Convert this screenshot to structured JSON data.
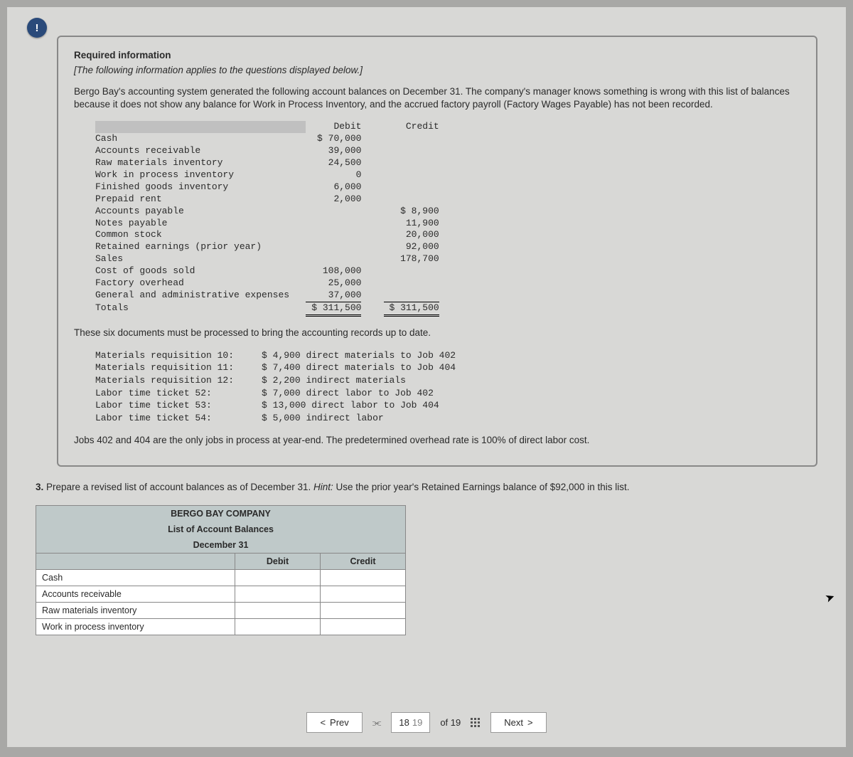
{
  "badge": "!",
  "required_info_title": "Required information",
  "italic_note": "[The following information applies to the questions displayed below.]",
  "intro_paragraph": "Bergo Bay's accounting system generated the following account balances on December 31. The company's manager knows something is wrong with this list of balances because it does not show any balance for Work in Process Inventory, and the accrued factory payroll (Factory Wages Payable) has not been recorded.",
  "trial_balance": {
    "col_debit": "Debit",
    "col_credit": "Credit",
    "rows": [
      {
        "account": "Cash",
        "debit": "$ 70,000",
        "credit": ""
      },
      {
        "account": "Accounts receivable",
        "debit": "39,000",
        "credit": ""
      },
      {
        "account": "Raw materials inventory",
        "debit": "24,500",
        "credit": ""
      },
      {
        "account": "Work in process inventory",
        "debit": "0",
        "credit": ""
      },
      {
        "account": "Finished goods inventory",
        "debit": "6,000",
        "credit": ""
      },
      {
        "account": "Prepaid rent",
        "debit": "2,000",
        "credit": ""
      },
      {
        "account": "Accounts payable",
        "debit": "",
        "credit": "$ 8,900"
      },
      {
        "account": "Notes payable",
        "debit": "",
        "credit": "11,900"
      },
      {
        "account": "Common stock",
        "debit": "",
        "credit": "20,000"
      },
      {
        "account": "Retained earnings (prior year)",
        "debit": "",
        "credit": "92,000"
      },
      {
        "account": "Sales",
        "debit": "",
        "credit": "178,700"
      },
      {
        "account": "Cost of goods sold",
        "debit": "108,000",
        "credit": ""
      },
      {
        "account": "Factory overhead",
        "debit": "25,000",
        "credit": ""
      },
      {
        "account": "General and administrative expenses",
        "debit": "37,000",
        "credit": ""
      }
    ],
    "totals_label": "Totals",
    "totals_debit": "$ 311,500",
    "totals_credit": "$ 311,500"
  },
  "docs_intro": "These six documents must be processed to bring the accounting records up to date.",
  "documents": [
    {
      "label": "Materials requisition 10:",
      "desc": "$ 4,900 direct materials to Job 402"
    },
    {
      "label": "Materials requisition 11:",
      "desc": "$ 7,400 direct materials to Job 404"
    },
    {
      "label": "Materials requisition 12:",
      "desc": "$ 2,200 indirect materials"
    },
    {
      "label": "Labor time ticket 52:",
      "desc": "$ 7,000 direct labor to Job 402"
    },
    {
      "label": "Labor time ticket 53:",
      "desc": "$ 13,000 direct labor to Job 404"
    },
    {
      "label": "Labor time ticket 54:",
      "desc": "$ 5,000 indirect labor"
    }
  ],
  "docs_outro": "Jobs 402 and 404 are the only jobs in process at year-end. The predetermined overhead rate is 100% of direct labor cost.",
  "q3_num": "3.",
  "q3_text": " Prepare a revised list of account balances as of December 31. ",
  "q3_hint_label": "Hint:",
  "q3_hint_text": " Use the prior year's Retained Earnings balance of $92,000 in this list.",
  "answer_table": {
    "company": "BERGO BAY COMPANY",
    "subtitle": "List of Account Balances",
    "date": "December 31",
    "col_debit": "Debit",
    "col_credit": "Credit",
    "rows": [
      "Cash",
      "Accounts receivable",
      "Raw materials inventory",
      "Work in process inventory"
    ]
  },
  "nav": {
    "prev": "Prev",
    "next": "Next",
    "page_a": "18",
    "page_b": "19",
    "of": "of 19"
  }
}
